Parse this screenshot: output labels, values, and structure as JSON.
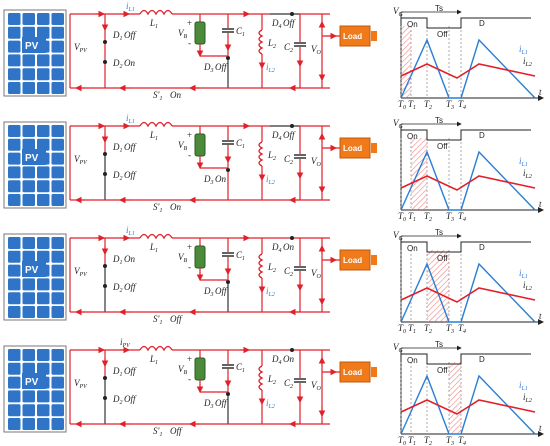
{
  "labels": {
    "pv": "PV",
    "vpv": "V",
    "vpv_sub": "PV",
    "ipv": "i",
    "ipv_sub": "PV",
    "il1": "i",
    "il1_sub": "L1",
    "il2": "i",
    "il2_sub": "L2",
    "l1": "L",
    "l1_sub": "1",
    "l2": "L",
    "l2_sub": "2",
    "c1": "C",
    "c1_sub": "1",
    "c2": "C",
    "c2_sub": "2",
    "vb": "V",
    "vb_sub": "B",
    "vo": "V",
    "vo_sub": "O",
    "d1": "D",
    "d1_sub": "1",
    "d2": "D",
    "d2_sub": "2",
    "d3": "D",
    "d3_sub": "3",
    "d4": "D",
    "d4_sub": "4",
    "s1": "S'",
    "s1_sub": "1",
    "load": "Load",
    "battery": "Battery",
    "plus": "+",
    "minus": "-",
    "vg": "V",
    "vg_sub": "G",
    "ts": "Ts",
    "on": "On",
    "off": "Off",
    "d": "D",
    "t": "t",
    "t0": "T",
    "t0_sub": "0",
    "t1": "T",
    "t1_sub": "1",
    "t2": "T",
    "t2_sub": "2",
    "t3": "T",
    "t3_sub": "3",
    "t4": "T",
    "t4_sub": "4"
  },
  "panels": [
    {
      "d1": "Off",
      "d2": "On",
      "d3": "Off",
      "d4": "Off",
      "s1": "On",
      "top_current": "il1",
      "highlight": [
        1,
        2
      ]
    },
    {
      "d1": "Off",
      "d2": "Off",
      "d3": "On",
      "d4": "Off",
      "s1": "On",
      "top_current": "il1",
      "highlight": [
        2,
        3
      ]
    },
    {
      "d1": "On",
      "d2": "Off",
      "d3": "Off",
      "d4": "On",
      "s1": "Off",
      "top_current": "il1",
      "highlight": [
        3,
        4
      ]
    },
    {
      "d1": "Off",
      "d2": "Off",
      "d3": "Off",
      "d4": "On",
      "s1": "Off",
      "top_current": "ipv",
      "highlight": [
        4,
        5
      ]
    }
  ],
  "colors": {
    "current": "#e0202a",
    "blue": "#2a7fd4",
    "load": "#f07a1a",
    "pv_cell": "#2f74c6",
    "battery": "#4a8a3a",
    "hatch": "#e77"
  }
}
